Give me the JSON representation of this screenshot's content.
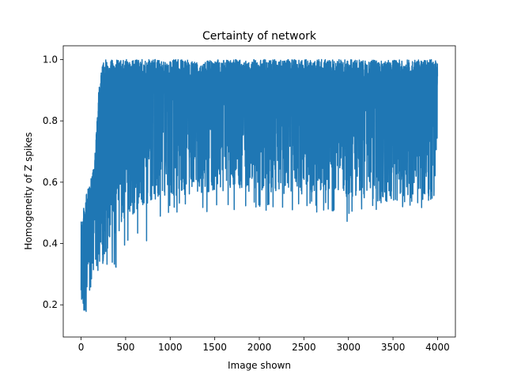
{
  "chart_data": {
    "type": "line",
    "title": "Certainty of network",
    "xlabel": "Image shown",
    "ylabel": "Homogeneity of Z spikes",
    "xlim": [
      -200,
      4200
    ],
    "ylim": [
      0.095,
      1.045
    ],
    "xticks": [
      0,
      500,
      1000,
      1500,
      2000,
      2500,
      3000,
      3500,
      4000
    ],
    "xtick_labels": [
      "0",
      "500",
      "1000",
      "1500",
      "2000",
      "2500",
      "3000",
      "3500",
      "4000"
    ],
    "yticks": [
      0.2,
      0.4,
      0.6,
      0.8,
      1.0
    ],
    "ytick_labels": [
      "0.2",
      "0.4",
      "0.6",
      "0.8",
      "1.0"
    ],
    "grid": false,
    "color": "#1f77b4",
    "series": [
      {
        "n_points": 4000,
        "x": [
          0,
          3999
        ],
        "approx_envelope": {
          "x": [
            0,
            50,
            100,
            150,
            200,
            250,
            300,
            400,
            500,
            600,
            700,
            800,
            900,
            1000,
            1200,
            1500,
            1800,
            2000,
            2300,
            2500,
            2800,
            3000,
            3200,
            3500,
            3800,
            4000
          ],
          "upper": [
            0.47,
            0.55,
            0.6,
            0.66,
            0.91,
            1.0,
            1.0,
            1.0,
            1.0,
            1.0,
            1.0,
            1.0,
            1.0,
            1.0,
            1.0,
            1.0,
            1.0,
            1.0,
            1.0,
            1.0,
            1.0,
            1.0,
            1.0,
            1.0,
            1.0,
            1.0
          ],
          "typical_low": [
            0.15,
            0.2,
            0.24,
            0.28,
            0.32,
            0.34,
            0.38,
            0.42,
            0.46,
            0.5,
            0.52,
            0.54,
            0.55,
            0.55,
            0.56,
            0.57,
            0.57,
            0.57,
            0.56,
            0.56,
            0.55,
            0.55,
            0.54,
            0.53,
            0.53,
            0.55
          ],
          "min": [
            0.14,
            0.16,
            0.2,
            0.26,
            0.32,
            0.32,
            0.32,
            0.32,
            0.38,
            0.42,
            0.44,
            0.35,
            0.48,
            0.5,
            0.5,
            0.5,
            0.5,
            0.5,
            0.5,
            0.5,
            0.5,
            0.46,
            0.5,
            0.5,
            0.5,
            0.55
          ]
        }
      }
    ]
  }
}
